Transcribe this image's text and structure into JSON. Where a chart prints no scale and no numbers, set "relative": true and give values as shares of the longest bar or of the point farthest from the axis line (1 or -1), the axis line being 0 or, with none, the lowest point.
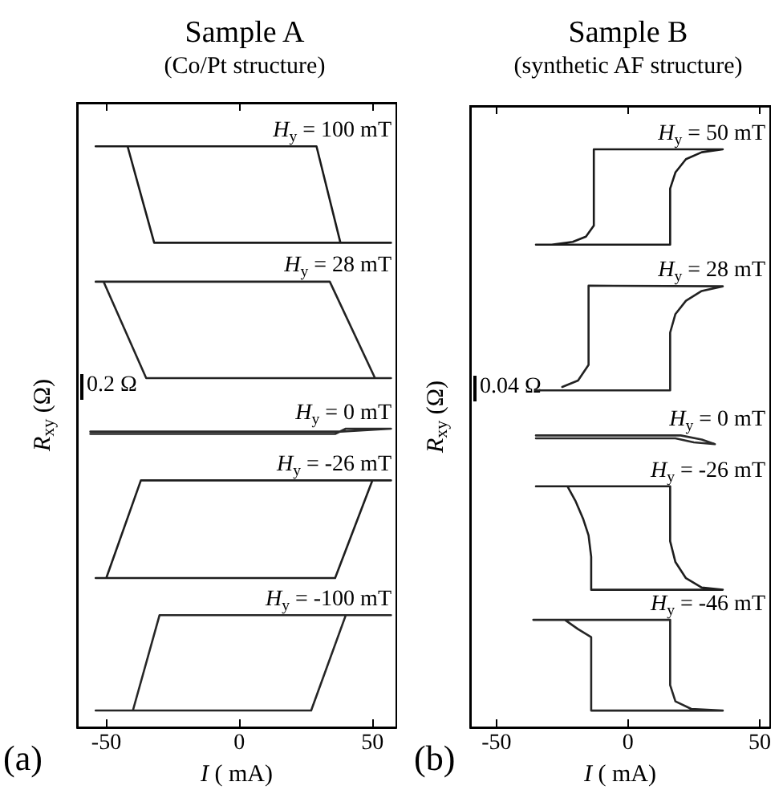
{
  "chart_data": [
    {
      "type": "line",
      "title": "Sample A",
      "subtitle": "(Co/Pt structure)",
      "xlabel": "I ( mA)",
      "ylabel": "R$_{xy}$ (Ω)",
      "annotations": [
        "(a)",
        "0.2 Ω"
      ],
      "relative": true,
      "xlim": [
        -61,
        59
      ],
      "xticks": [
        -50,
        0,
        50
      ],
      "series": [
        {
          "name": "H$_{y}$ = 100 mT",
          "color": "#1a1a1a",
          "x": [
            -54,
            29,
            38,
            57,
            null,
            57,
            -32,
            -42
          ],
          "values": [
            1.0,
            1.0,
            0.834,
            0.834,
            null,
            0.834,
            0.834,
            1.0
          ]
        },
        {
          "name": "H$_{y}$ = 28 mT",
          "color": "#222222",
          "x": [
            -54,
            34,
            51,
            57,
            null,
            57,
            -35,
            -51
          ],
          "values": [
            0.767,
            0.767,
            0.601,
            0.601,
            null,
            0.601,
            0.601,
            0.767
          ]
        },
        {
          "name": "H$_{y}$ = 0 mT",
          "color": "#2a2a2a",
          "x": [
            -56,
            36,
            40,
            57,
            null,
            57,
            38,
            -56
          ],
          "values": [
            0.505,
            0.505,
            0.514,
            0.514,
            null,
            0.514,
            0.509,
            0.509
          ]
        },
        {
          "name": "H$_{y}$ = -26 mT",
          "color": "#1e1e1e",
          "x": [
            -54,
            36,
            50,
            57,
            null,
            57,
            -37,
            -50
          ],
          "values": [
            0.257,
            0.257,
            0.425,
            0.425,
            null,
            0.425,
            0.425,
            0.257
          ]
        },
        {
          "name": "H$_{y}$ = -100 mT",
          "color": "#262626",
          "x": [
            -54,
            27,
            40,
            57,
            null,
            57,
            -30,
            -40
          ],
          "values": [
            0.029,
            0.029,
            0.193,
            0.193,
            null,
            0.193,
            0.193,
            0.029
          ]
        }
      ]
    },
    {
      "type": "line",
      "title": "Sample B",
      "subtitle": "(synthetic AF structure)",
      "xlabel": "I ( mA)",
      "ylabel": "R$_{xy}$ (Ω)",
      "annotations": [
        "(b)",
        "0.04 Ω"
      ],
      "relative": true,
      "xlim": [
        -60,
        54
      ],
      "xticks": [
        -50,
        0,
        50
      ],
      "series": [
        {
          "name": "H$_{y}$ = 50 mT",
          "color": "#1a1a1a",
          "x": [
            -35,
            16,
            16,
            18,
            22,
            28,
            36,
            -13,
            -13,
            -16,
            -21,
            -29
          ],
          "values": [
            0.835,
            0.835,
            0.932,
            0.96,
            0.983,
            0.995,
            1.0,
            1.0,
            0.868,
            0.849,
            0.84,
            0.835
          ]
        },
        {
          "name": "H$_{y}$ = 28 mT",
          "color": "#222222",
          "x": [
            -35,
            16,
            16,
            18,
            22,
            28,
            36,
            -15,
            -15,
            -19,
            -25
          ],
          "values": [
            0.583,
            0.583,
            0.683,
            0.715,
            0.738,
            0.755,
            0.763,
            0.764,
            0.627,
            0.6,
            0.589
          ]
        },
        {
          "name": "H$_{y}$ = 0 mT",
          "color": "#2a2a2a",
          "x": [
            -35,
            20,
            28,
            33,
            25,
            18,
            -35
          ],
          "values": [
            0.505,
            0.505,
            0.498,
            0.49,
            0.493,
            0.5,
            0.5
          ]
        },
        {
          "name": "H$_{y}$ = -26 mT",
          "color": "#1e1e1e",
          "x": [
            -35,
            16,
            16,
            18,
            22,
            28,
            36,
            -14,
            -14,
            -15,
            -17,
            -20,
            -23
          ],
          "values": [
            0.417,
            0.417,
            0.322,
            0.286,
            0.258,
            0.242,
            0.238,
            0.238,
            0.295,
            0.332,
            0.36,
            0.392,
            0.417
          ]
        },
        {
          "name": "H$_{y}$ = -46 mT",
          "color": "#262626",
          "x": [
            -36,
            16,
            16,
            18,
            24,
            36,
            -14,
            -14,
            -19,
            -24
          ],
          "values": [
            0.186,
            0.186,
            0.073,
            0.045,
            0.032,
            0.029,
            0.029,
            0.156,
            0.17,
            0.186
          ]
        }
      ]
    }
  ]
}
